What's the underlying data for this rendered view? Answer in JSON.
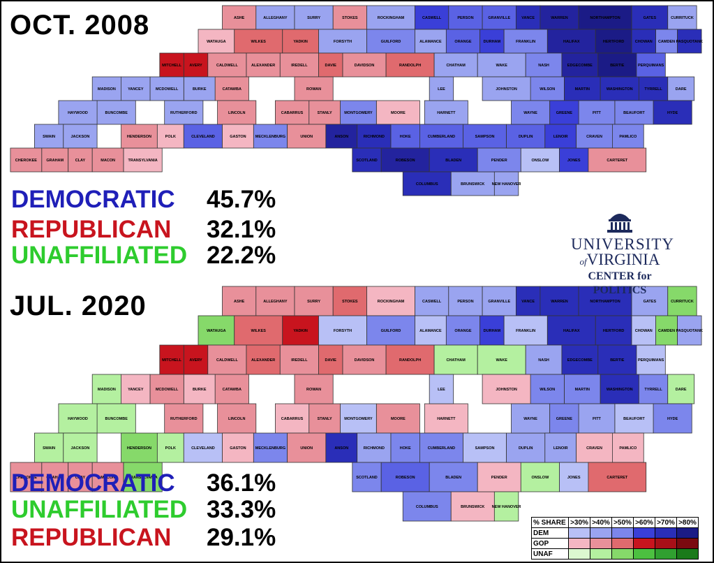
{
  "maps": [
    {
      "period": "OCT. 2008",
      "stats": [
        {
          "label": "DEMOCRATIC",
          "value": "45.7%",
          "color": "#1f1fb8"
        },
        {
          "label": "REPUBLICAN",
          "value": "32.1%",
          "color": "#c8141e"
        },
        {
          "label": "UNAFFILIATED",
          "value": "22.2%",
          "color": "#2ecc2e"
        }
      ],
      "counties": [
        {
          "name": "ASHE",
          "fill": "#e8909a"
        },
        {
          "name": "ALLEGHANY",
          "fill": "#9aa4f0"
        },
        {
          "name": "SURRY",
          "fill": "#9aa4f0"
        },
        {
          "name": "STOKES",
          "fill": "#e8909a"
        },
        {
          "name": "ROCKINGHAM",
          "fill": "#9aa4f0"
        },
        {
          "name": "CASWELL",
          "fill": "#3a3fd8"
        },
        {
          "name": "PERSON",
          "fill": "#5a62e4"
        },
        {
          "name": "GRANVILLE",
          "fill": "#5a62e4"
        },
        {
          "name": "VANCE",
          "fill": "#2a2eb8"
        },
        {
          "name": "WARREN",
          "fill": "#23239e"
        },
        {
          "name": "NORTHAMPTON",
          "fill": "#1b1b86"
        },
        {
          "name": "GATES",
          "fill": "#2a2eb8"
        },
        {
          "name": "WATAUGA",
          "fill": "#f4b6c2"
        },
        {
          "name": "WILKES",
          "fill": "#e06a6e"
        },
        {
          "name": "YADKIN",
          "fill": "#e06a6e"
        },
        {
          "name": "FORSYTH",
          "fill": "#9aa4f0"
        },
        {
          "name": "GUILFORD",
          "fill": "#7c86ec"
        },
        {
          "name": "ALAMANCE",
          "fill": "#9aa4f0"
        },
        {
          "name": "ORANGE",
          "fill": "#5a62e4"
        },
        {
          "name": "DURHAM",
          "fill": "#3a3fd8"
        },
        {
          "name": "HALIFAX",
          "fill": "#23239e"
        },
        {
          "name": "HERTFORD",
          "fill": "#1b1b86"
        },
        {
          "name": "BERTIE",
          "fill": "#1b1b86"
        },
        {
          "name": "AVERY",
          "fill": "#c8141e"
        },
        {
          "name": "MITCHELL",
          "fill": "#c8141e"
        },
        {
          "name": "CALDWELL",
          "fill": "#e8909a"
        },
        {
          "name": "ALEXANDER",
          "fill": "#e8909a"
        },
        {
          "name": "IREDELL",
          "fill": "#e8909a"
        },
        {
          "name": "DAVIE",
          "fill": "#e06a6e"
        },
        {
          "name": "DAVIDSON",
          "fill": "#e8909a"
        },
        {
          "name": "RANDOLPH",
          "fill": "#e06a6e"
        },
        {
          "name": "CHATHAM",
          "fill": "#9aa4f0"
        },
        {
          "name": "WAKE",
          "fill": "#9aa4f0"
        },
        {
          "name": "FRANKLIN",
          "fill": "#7c86ec"
        },
        {
          "name": "NASH",
          "fill": "#7c86ec"
        },
        {
          "name": "EDGECOMBE",
          "fill": "#23239e"
        },
        {
          "name": "MARTIN",
          "fill": "#2a2eb8"
        },
        {
          "name": "WASHINGTON",
          "fill": "#2a2eb8"
        },
        {
          "name": "TYRRELL",
          "fill": "#2a2eb8"
        },
        {
          "name": "DARE",
          "fill": "#9aa4f0"
        },
        {
          "name": "HYDE",
          "fill": "#2a2eb8"
        },
        {
          "name": "BEAUFORT",
          "fill": "#7c86ec"
        },
        {
          "name": "PITT",
          "fill": "#7c86ec"
        },
        {
          "name": "WILSON",
          "fill": "#7c86ec"
        },
        {
          "name": "JOHNSTON",
          "fill": "#9aa4f0"
        },
        {
          "name": "HARNETT",
          "fill": "#9aa4f0"
        },
        {
          "name": "LEE",
          "fill": "#9aa4f0"
        },
        {
          "name": "MOORE",
          "fill": "#f4b6c2"
        },
        {
          "name": "MONTGOMERY",
          "fill": "#7c86ec"
        },
        {
          "name": "STANLY",
          "fill": "#e8909a"
        },
        {
          "name": "CABARRUS",
          "fill": "#e8909a"
        },
        {
          "name": "ROWAN",
          "fill": "#e8909a"
        },
        {
          "name": "CATAWBA",
          "fill": "#e8909a"
        },
        {
          "name": "BURKE",
          "fill": "#9aa4f0"
        },
        {
          "name": "MCDOWELL",
          "fill": "#9aa4f0"
        },
        {
          "name": "YANCEY",
          "fill": "#9aa4f0"
        },
        {
          "name": "MADISON",
          "fill": "#9aa4f0"
        },
        {
          "name": "BUNCOMBE",
          "fill": "#9aa4f0"
        },
        {
          "name": "HAYWOOD",
          "fill": "#9aa4f0"
        },
        {
          "name": "SWAIN",
          "fill": "#9aa4f0"
        },
        {
          "name": "GRAHAM",
          "fill": "#e8909a"
        },
        {
          "name": "JACKSON",
          "fill": "#9aa4f0"
        },
        {
          "name": "CHEROKEE",
          "fill": "#e8909a"
        },
        {
          "name": "CLAY",
          "fill": "#e8909a"
        },
        {
          "name": "MACON",
          "fill": "#e8909a"
        },
        {
          "name": "TRANSYLVANIA",
          "fill": "#f4b6c2"
        },
        {
          "name": "HENDERSON",
          "fill": "#e8909a"
        },
        {
          "name": "POLK",
          "fill": "#f4b6c2"
        },
        {
          "name": "RUTHERFORD",
          "fill": "#9aa4f0"
        },
        {
          "name": "CLEVELAND",
          "fill": "#5a62e4"
        },
        {
          "name": "LINCOLN",
          "fill": "#e8909a"
        },
        {
          "name": "GASTON",
          "fill": "#f4b6c2"
        },
        {
          "name": "MECKLENBURG",
          "fill": "#7c86ec"
        },
        {
          "name": "UNION",
          "fill": "#e8909a"
        },
        {
          "name": "ANSON",
          "fill": "#23239e"
        },
        {
          "name": "RICHMOND",
          "fill": "#2a2eb8"
        },
        {
          "name": "SCOTLAND",
          "fill": "#2a2eb8"
        },
        {
          "name": "HOKE",
          "fill": "#5a62e4"
        },
        {
          "name": "ROBESON",
          "fill": "#23239e"
        },
        {
          "name": "CUMBERLAND",
          "fill": "#5a62e4"
        },
        {
          "name": "SAMPSON",
          "fill": "#5a62e4"
        },
        {
          "name": "BLADEN",
          "fill": "#2a2eb8"
        },
        {
          "name": "COLUMBUS",
          "fill": "#2a2eb8"
        },
        {
          "name": "BRUNSWICK",
          "fill": "#9aa4f0"
        },
        {
          "name": "PENDER",
          "fill": "#7c86ec"
        },
        {
          "name": "NEW HANOVER",
          "fill": "#9aa4f0"
        },
        {
          "name": "ONSLOW",
          "fill": "#b8c0f6"
        },
        {
          "name": "DUPLIN",
          "fill": "#5a62e4"
        },
        {
          "name": "WAYNE",
          "fill": "#7c86ec"
        },
        {
          "name": "GREENE",
          "fill": "#3a3fd8"
        },
        {
          "name": "LENOIR",
          "fill": "#3a3fd8"
        },
        {
          "name": "JONES",
          "fill": "#3a3fd8"
        },
        {
          "name": "CRAVEN",
          "fill": "#7c86ec"
        },
        {
          "name": "PAMLICO",
          "fill": "#7c86ec"
        },
        {
          "name": "CARTERET",
          "fill": "#e8909a"
        },
        {
          "name": "CURRITUCK",
          "fill": "#9aa4f0"
        },
        {
          "name": "CAMDEN",
          "fill": "#7c86ec"
        },
        {
          "name": "PASQUOTANK",
          "fill": "#2a2eb8"
        },
        {
          "name": "PERQUIMANS",
          "fill": "#5a62e4"
        },
        {
          "name": "CHOWAN",
          "fill": "#2a2eb8"
        }
      ]
    },
    {
      "period": "JUL. 2020",
      "stats": [
        {
          "label": "DEMOCRATIC",
          "value": "36.1%",
          "color": "#1f1fb8"
        },
        {
          "label": "UNAFFILIATED",
          "value": "33.3%",
          "color": "#2ecc2e"
        },
        {
          "label": "REPUBLICAN",
          "value": "29.1%",
          "color": "#c8141e"
        }
      ],
      "counties": [
        {
          "name": "ASHE",
          "fill": "#e8909a"
        },
        {
          "name": "ALLEGHANY",
          "fill": "#e8909a"
        },
        {
          "name": "SURRY",
          "fill": "#e8909a"
        },
        {
          "name": "STOKES",
          "fill": "#e06a6e"
        },
        {
          "name": "ROCKINGHAM",
          "fill": "#f4b6c2"
        },
        {
          "name": "CASWELL",
          "fill": "#9aa4f0"
        },
        {
          "name": "PERSON",
          "fill": "#9aa4f0"
        },
        {
          "name": "GRANVILLE",
          "fill": "#9aa4f0"
        },
        {
          "name": "VANCE",
          "fill": "#2a2eb8"
        },
        {
          "name": "WARREN",
          "fill": "#2a2eb8"
        },
        {
          "name": "NORTHAMPTON",
          "fill": "#2a2eb8"
        },
        {
          "name": "GATES",
          "fill": "#9aa4f0"
        },
        {
          "name": "WATAUGA",
          "fill": "#86d96a"
        },
        {
          "name": "WILKES",
          "fill": "#e06a6e"
        },
        {
          "name": "YADKIN",
          "fill": "#c8141e"
        },
        {
          "name": "FORSYTH",
          "fill": "#b8c0f6"
        },
        {
          "name": "GUILFORD",
          "fill": "#7c86ec"
        },
        {
          "name": "ALAMANCE",
          "fill": "#b8c0f6"
        },
        {
          "name": "ORANGE",
          "fill": "#7c86ec"
        },
        {
          "name": "DURHAM",
          "fill": "#3a3fd8"
        },
        {
          "name": "HALIFAX",
          "fill": "#2a2eb8"
        },
        {
          "name": "HERTFORD",
          "fill": "#2a2eb8"
        },
        {
          "name": "BERTIE",
          "fill": "#2a2eb8"
        },
        {
          "name": "AVERY",
          "fill": "#c8141e"
        },
        {
          "name": "MITCHELL",
          "fill": "#c8141e"
        },
        {
          "name": "CALDWELL",
          "fill": "#e8909a"
        },
        {
          "name": "ALEXANDER",
          "fill": "#e06a6e"
        },
        {
          "name": "IREDELL",
          "fill": "#e8909a"
        },
        {
          "name": "DAVIE",
          "fill": "#e06a6e"
        },
        {
          "name": "DAVIDSON",
          "fill": "#e8909a"
        },
        {
          "name": "RANDOLPH",
          "fill": "#e06a6e"
        },
        {
          "name": "CHATHAM",
          "fill": "#b4f0a0"
        },
        {
          "name": "WAKE",
          "fill": "#b4f0a0"
        },
        {
          "name": "FRANKLIN",
          "fill": "#b8c0f6"
        },
        {
          "name": "NASH",
          "fill": "#9aa4f0"
        },
        {
          "name": "EDGECOMBE",
          "fill": "#2a2eb8"
        },
        {
          "name": "MARTIN",
          "fill": "#7c86ec"
        },
        {
          "name": "WASHINGTON",
          "fill": "#2a2eb8"
        },
        {
          "name": "TYRRELL",
          "fill": "#7c86ec"
        },
        {
          "name": "DARE",
          "fill": "#b4f0a0"
        },
        {
          "name": "HYDE",
          "fill": "#7c86ec"
        },
        {
          "name": "BEAUFORT",
          "fill": "#b8c0f6"
        },
        {
          "name": "PITT",
          "fill": "#9aa4f0"
        },
        {
          "name": "WILSON",
          "fill": "#7c86ec"
        },
        {
          "name": "JOHNSTON",
          "fill": "#f4b6c2"
        },
        {
          "name": "HARNETT",
          "fill": "#f4b6c2"
        },
        {
          "name": "LEE",
          "fill": "#b8c0f6"
        },
        {
          "name": "MOORE",
          "fill": "#e8909a"
        },
        {
          "name": "MONTGOMERY",
          "fill": "#b8c0f6"
        },
        {
          "name": "STANLY",
          "fill": "#e8909a"
        },
        {
          "name": "CABARRUS",
          "fill": "#f4b6c2"
        },
        {
          "name": "ROWAN",
          "fill": "#e8909a"
        },
        {
          "name": "CATAWBA",
          "fill": "#e8909a"
        },
        {
          "name": "BURKE",
          "fill": "#f4b6c2"
        },
        {
          "name": "MCDOWELL",
          "fill": "#e8909a"
        },
        {
          "name": "YANCEY",
          "fill": "#f4b6c2"
        },
        {
          "name": "MADISON",
          "fill": "#b4f0a0"
        },
        {
          "name": "BUNCOMBE",
          "fill": "#b4f0a0"
        },
        {
          "name": "HAYWOOD",
          "fill": "#b4f0a0"
        },
        {
          "name": "SWAIN",
          "fill": "#b4f0a0"
        },
        {
          "name": "GRAHAM",
          "fill": "#e8909a"
        },
        {
          "name": "JACKSON",
          "fill": "#b4f0a0"
        },
        {
          "name": "CHEROKEE",
          "fill": "#e8909a"
        },
        {
          "name": "CLAY",
          "fill": "#e8909a"
        },
        {
          "name": "MACON",
          "fill": "#e8909a"
        },
        {
          "name": "TRANSYLVANIA",
          "fill": "#86d96a"
        },
        {
          "name": "HENDERSON",
          "fill": "#86d96a"
        },
        {
          "name": "POLK",
          "fill": "#b4f0a0"
        },
        {
          "name": "RUTHERFORD",
          "fill": "#e8909a"
        },
        {
          "name": "CLEVELAND",
          "fill": "#b8c0f6"
        },
        {
          "name": "LINCOLN",
          "fill": "#e8909a"
        },
        {
          "name": "GASTON",
          "fill": "#f4b6c2"
        },
        {
          "name": "MECKLENBURG",
          "fill": "#7c86ec"
        },
        {
          "name": "UNION",
          "fill": "#e8909a"
        },
        {
          "name": "ANSON",
          "fill": "#2a2eb8"
        },
        {
          "name": "RICHMOND",
          "fill": "#9aa4f0"
        },
        {
          "name": "SCOTLAND",
          "fill": "#7c86ec"
        },
        {
          "name": "HOKE",
          "fill": "#7c86ec"
        },
        {
          "name": "ROBESON",
          "fill": "#5a62e4"
        },
        {
          "name": "CUMBERLAND",
          "fill": "#7c86ec"
        },
        {
          "name": "SAMPSON",
          "fill": "#b8c0f6"
        },
        {
          "name": "BLADEN",
          "fill": "#7c86ec"
        },
        {
          "name": "COLUMBUS",
          "fill": "#7c86ec"
        },
        {
          "name": "BRUNSWICK",
          "fill": "#f4b6c2"
        },
        {
          "name": "PENDER",
          "fill": "#f4b6c2"
        },
        {
          "name": "NEW HANOVER",
          "fill": "#b4f0a0"
        },
        {
          "name": "ONSLOW",
          "fill": "#b4f0a0"
        },
        {
          "name": "DUPLIN",
          "fill": "#9aa4f0"
        },
        {
          "name": "WAYNE",
          "fill": "#9aa4f0"
        },
        {
          "name": "GREENE",
          "fill": "#7c86ec"
        },
        {
          "name": "LENOIR",
          "fill": "#9aa4f0"
        },
        {
          "name": "JONES",
          "fill": "#b8c0f6"
        },
        {
          "name": "CRAVEN",
          "fill": "#f4b6c2"
        },
        {
          "name": "PAMLICO",
          "fill": "#f4b6c2"
        },
        {
          "name": "CARTERET",
          "fill": "#e06a6e"
        },
        {
          "name": "CURRITUCK",
          "fill": "#86d96a"
        },
        {
          "name": "CAMDEN",
          "fill": "#86d96a"
        },
        {
          "name": "PASQUOTANK",
          "fill": "#9aa4f0"
        },
        {
          "name": "PERQUIMANS",
          "fill": "#b8c0f6"
        },
        {
          "name": "CHOWAN",
          "fill": "#b8c0f6"
        }
      ]
    }
  ],
  "logo": {
    "line1": "UNIVERSITY",
    "of": "of",
    "line2": "VIRGINIA",
    "line3": "CENTER for POLITICS"
  },
  "legend": {
    "header": "% SHARE",
    "thresholds": [
      ">30%",
      ">40%",
      ">50%",
      ">60%",
      ">70%",
      ">80%"
    ],
    "rows": [
      {
        "label": "DEM",
        "colors": [
          "#b8c0f6",
          "#9aa4f0",
          "#7c86ec",
          "#3a3fd8",
          "#2a2eb8",
          "#1b1b86"
        ]
      },
      {
        "label": "GOP",
        "colors": [
          "#f4b6c2",
          "#e8909a",
          "#e06a6e",
          "#c8141e",
          "#a81018",
          "#7a0a10"
        ]
      },
      {
        "label": "UNAF",
        "colors": [
          "#dcf8d0",
          "#b4f0a0",
          "#86d96a",
          "#4cc040",
          "#30a030",
          "#1a7a1a"
        ]
      }
    ]
  }
}
